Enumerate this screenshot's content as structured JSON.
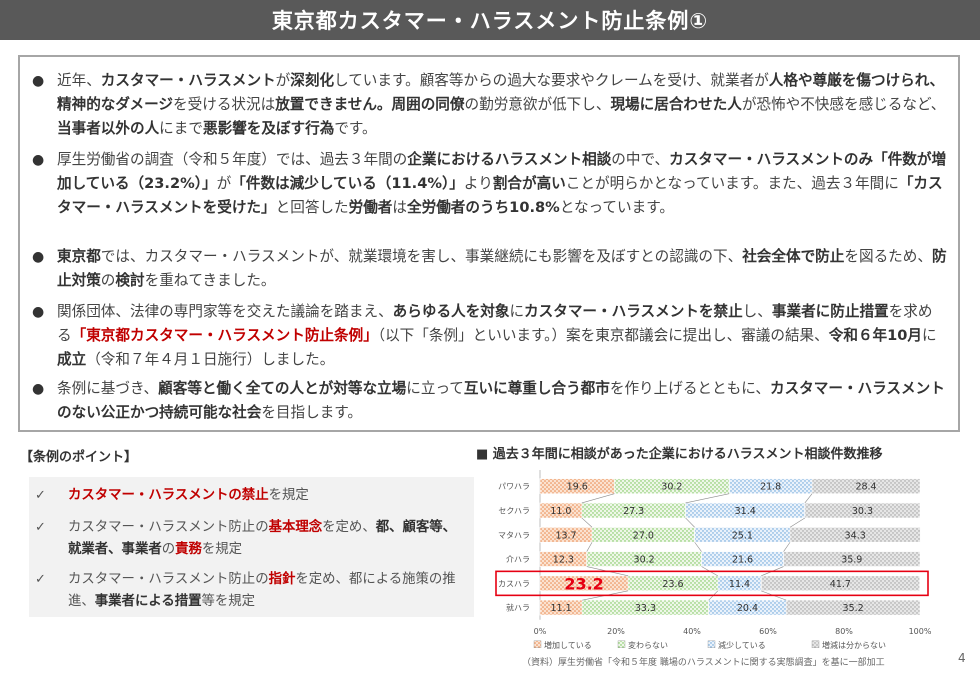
{
  "header": {
    "title": "東京都カスタマー・ハラスメント防止条例①"
  },
  "bullets": [
    "近年、<b>カスタマー・ハラスメント</b>が<b>深刻化</b>しています。顧客等からの過大な要求やクレームを受け、就業者が<b>人格や尊厳を傷つけられ、精神的なダメージ</b>を受ける状況は<b>放置できません。周囲の同僚</b>の勤労意欲が低下し、<b>現場に居合わせた人</b>が恐怖や不快感を感じるなど、<b>当事者以外の人</b>にまで<b>悪影響を及ぼす行為</b>です。",
    "厚生労働省の調査（令和５年度）では、過去３年間の<b>企業におけるハラスメント相談</b>の中で、<b>カスタマー・ハラスメントのみ「件数が増加している（23.2%）」</b>が<b>「件数は減少している（11.4%）」</b>より<b>割合が高い</b>ことが明らかとなっています。また、過去３年間に<b>「カスタマー・ハラスメントを受けた」</b>と回答した<b>労働者</b>は<b>全労働者のうち10.8%</b>となっています。",
    "<b>東京都</b>では、カスタマー・ハラスメントが、就業環境を害し、事業継続にも影響を及ぼすとの認識の下、<b>社会全体で防止</b>を図るため、<b>防止対策</b>の<b>検討</b>を重ねてきました。",
    "関係団体、法律の専門家等を交えた議論を踏まえ、<b>あらゆる人を対象</b>に<b>カスタマー・ハラスメントを禁止</b>し、<b>事業者に防止措置</b>を求める<span class=\"red\">「東京都カスタマー・ハラスメント防止条例」</span>（以下「条例」といいます。）案を東京都議会に提出し、審議の結果、<b>令和６年10月</b>に<b>成立</b>（令和７年４月１日施行）しました。",
    "条例に基づき、<b>顧客等と働く全ての人とが対等な立場</b>に立って<b>互いに尊重し合う都市</b>を作り上げるとともに、<b>カスタマー・ハラスメントのない公正かつ持続可能な社会</b>を目指します。"
  ],
  "bullet_marker": "●",
  "points": {
    "title": "【条例のポイント】",
    "check": "✓",
    "items": [
      "<span class=\"red\">カスタマー・ハラスメントの禁止</span>を規定",
      "カスタマー・ハラスメント防止の<span class=\"red\">基本理念</span>を定め、<b>都、顧客等、就業者、事業者</b>の<span class=\"red\">責務</span>を規定",
      "カスタマー・ハラスメント防止の<span class=\"red\">指針</span>を定め、都による施策の推進、<b>事業者による措置</b>等を規定"
    ]
  },
  "chart_title": "■ 過去３年間に相談があった企業におけるハラスメント相談件数推移",
  "chart_data": {
    "type": "bar",
    "orientation": "horizontal-stacked-100",
    "categories": [
      "パワハラ",
      "セクハラ",
      "マタハラ",
      "介ハラ",
      "カスハラ",
      "就ハラ"
    ],
    "series": [
      {
        "name": "増加している",
        "values": [
          19.6,
          11.0,
          13.7,
          12.3,
          23.2,
          11.1
        ],
        "color": "#f4b183"
      },
      {
        "name": "変わらない",
        "values": [
          30.2,
          27.3,
          27.0,
          30.2,
          23.6,
          33.3
        ],
        "color": "#c5e0b4"
      },
      {
        "name": "減少している",
        "values": [
          21.8,
          31.4,
          25.1,
          21.6,
          11.4,
          20.4
        ],
        "color": "#bdd7ee"
      },
      {
        "name": "増減は分からない",
        "values": [
          28.4,
          30.3,
          34.3,
          35.9,
          41.7,
          35.2
        ],
        "color": "#d0d0d0"
      }
    ],
    "xticks": [
      "0%",
      "20%",
      "40%",
      "60%",
      "80%",
      "100%"
    ],
    "xlim": [
      0,
      100
    ],
    "highlight_category": "カスハラ",
    "highlight_color": "#e60012",
    "legend_position": "bottom"
  },
  "source": "（資料）厚生労働省「令和５年度 職場のハラスメントに関する実態調査」を基に一部加工",
  "page_number": "4"
}
